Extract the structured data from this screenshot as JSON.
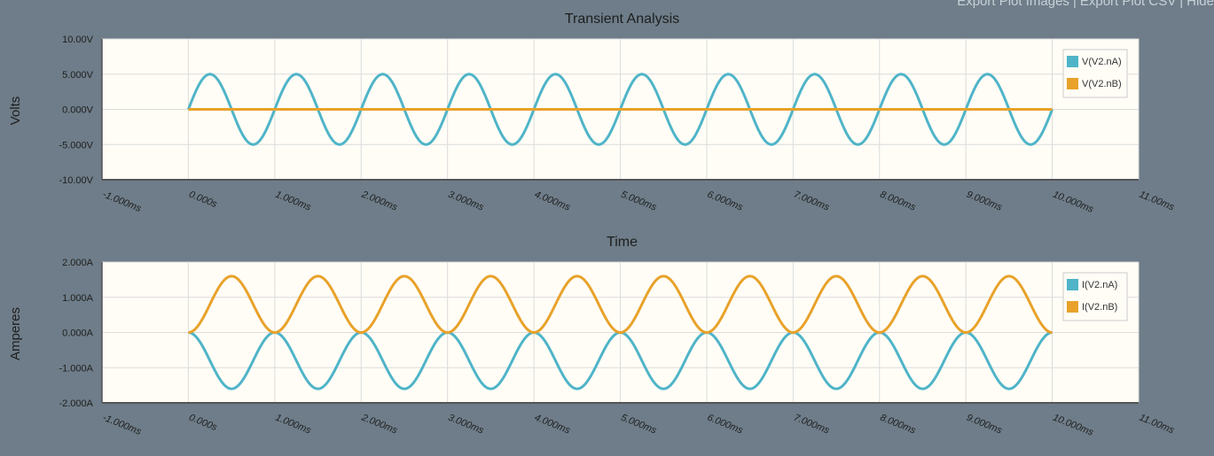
{
  "toolbar": {
    "export_images": "Export Plot Images",
    "export_csv": "Export Plot CSV",
    "hide": "Hide",
    "separator": "|"
  },
  "colors": {
    "background": "#6e7d89",
    "plot_bg": "#fffdf6",
    "series_a": "#4fb4c8",
    "series_b": "#e8a22a",
    "grid": "#dcdcdc"
  },
  "chart_data": [
    {
      "type": "line",
      "title": "Transient Analysis",
      "ylabel": "Volts",
      "xlabel": "Time",
      "xlim": [
        -1,
        11
      ],
      "ylim": [
        -10,
        10
      ],
      "x_unit": "ms",
      "grid": true,
      "legend_position": "top-right",
      "y_ticks": [
        "10.00V",
        "5.000V",
        "0.000V",
        "-5.000V",
        "-10.00V"
      ],
      "y_tick_values": [
        10,
        5,
        0,
        -5,
        -10
      ],
      "x_ticks": [
        "-1.000ms",
        "0.000s",
        "1.000ms",
        "2.000ms",
        "3.000ms",
        "4.000ms",
        "5.000ms",
        "6.000ms",
        "7.000ms",
        "8.000ms",
        "9.000ms",
        "10.000ms",
        "11.00ms"
      ],
      "x_tick_values": [
        -1,
        0,
        1,
        2,
        3,
        4,
        5,
        6,
        7,
        8,
        9,
        10,
        11
      ],
      "series": [
        {
          "name": "V(V2.nA)",
          "color": "#4fb4c8",
          "function": "sine",
          "amplitude": 5,
          "period": 1,
          "x_start": 0,
          "x_end": 10,
          "offset": 0
        },
        {
          "name": "V(V2.nB)",
          "color": "#e8a22a",
          "function": "constant",
          "amplitude": 0,
          "period": 1,
          "x_start": 0,
          "x_end": 10,
          "offset": 0
        }
      ]
    },
    {
      "type": "line",
      "title": "",
      "ylabel": "Amperes",
      "xlabel": "",
      "xlim": [
        -1,
        11
      ],
      "ylim": [
        -2,
        2
      ],
      "x_unit": "ms",
      "grid": true,
      "legend_position": "top-right",
      "y_ticks": [
        "2.000A",
        "1.000A",
        "0.000A",
        "-1.000A",
        "-2.000A"
      ],
      "y_tick_values": [
        2,
        1,
        0,
        -1,
        -2
      ],
      "x_ticks": [
        "-1.000ms",
        "0.000s",
        "1.000ms",
        "2.000ms",
        "3.000ms",
        "4.000ms",
        "5.000ms",
        "6.000ms",
        "7.000ms",
        "8.000ms",
        "9.000ms",
        "10.000ms",
        "11.00ms"
      ],
      "x_tick_values": [
        -1,
        0,
        1,
        2,
        3,
        4,
        5,
        6,
        7,
        8,
        9,
        10,
        11
      ],
      "series": [
        {
          "name": "I(V2.nA)",
          "color": "#4fb4c8",
          "function": "neg_sin_squared",
          "amplitude": 1.6,
          "period": 1,
          "x_start": 0,
          "x_end": 10,
          "offset": 0
        },
        {
          "name": "I(V2.nB)",
          "color": "#e8a22a",
          "function": "sin_squared",
          "amplitude": 1.6,
          "period": 1,
          "x_start": 0,
          "x_end": 10,
          "offset": 0
        }
      ]
    }
  ]
}
